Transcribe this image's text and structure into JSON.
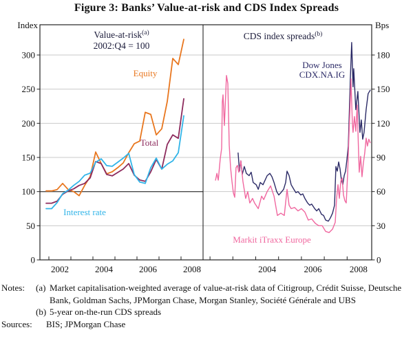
{
  "figure": {
    "title": "Figure 3: Banks’ Value-at-risk and CDS Index Spreads"
  },
  "axes": {
    "left_label": "Index",
    "right_label": "Bps"
  },
  "notes": {
    "label": "Notes:",
    "items": [
      {
        "marker": "(a)",
        "text": "Market capitalisation-weighted average of value-at-risk data of Citigroup, Crédit Suisse, Deutsche Bank, Goldman Sachs, JPMorgan Chase, Morgan Stanley, Société Générale and UBS"
      },
      {
        "marker": "(b)",
        "text": "5-year on-the-run CDS spreads"
      }
    ],
    "sources_label": "Sources:",
    "sources": "BIS; JPMorgan Chase"
  },
  "chart_data": {
    "type": "line",
    "layout": "two-panel shared frame, left value axis (Index) and right value axis (Bps), light horizontal gridlines",
    "panels": [
      {
        "title": "Value-at-risk",
        "title_sup": "(a)",
        "subtitle": "2002:Q4 = 100",
        "ylabel": "Index",
        "ylim": [
          0,
          344
        ],
        "yticks": [
          0,
          50,
          100,
          150,
          200,
          250,
          300
        ],
        "reference_line_value": 100,
        "x_tick_years": [
          2002,
          2003,
          2004,
          2005,
          2006,
          2007,
          2008
        ],
        "x_label_years": [
          2002,
          2004,
          2006,
          2008
        ],
        "series": [
          {
            "name": "Equity",
            "color": "#E8761E",
            "label_lines": [
              "Equity"
            ],
            "x_start": 2001.875,
            "x_step": 0.25,
            "values": [
              101,
              101,
              103,
              112,
              103,
              100,
              94,
              109,
              122,
              158,
              141,
              126,
              129,
              135,
              142,
              157,
              170,
              174,
              216,
              213,
              183,
              192,
              232,
              295,
              286,
              323
            ]
          },
          {
            "name": "Total",
            "color": "#8C2A5C",
            "label_lines": [
              "Total"
            ],
            "x_start": 2001.875,
            "x_step": 0.25,
            "values": [
              83,
              83,
              86,
              96,
              101,
              104,
              109,
              112,
              120,
              144,
              141,
              125,
              123,
              128,
              133,
              141,
              124,
              117,
              115,
              129,
              147,
              133,
              169,
              183,
              178,
              236
            ]
          },
          {
            "name": "Interest rate",
            "color": "#30B4E8",
            "label_lines": [
              "Interest rate"
            ],
            "x_start": 2001.875,
            "x_step": 0.25,
            "values": [
              75,
              75,
              84,
              97,
              102,
              109,
              115,
              124,
              127,
              143,
              148,
              138,
              137,
              143,
              149,
              156,
              125,
              114,
              112,
              135,
              149,
              133,
              140,
              145,
              157,
              211
            ]
          }
        ]
      },
      {
        "title": "CDS index spreads",
        "title_sup": "(b)",
        "ylabel": "Bps",
        "ylim": [
          0,
          206
        ],
        "yticks": [
          0,
          30,
          60,
          90,
          120,
          150,
          180
        ],
        "x_tick_years": [
          2002,
          2003,
          2004,
          2005,
          2006,
          2007,
          2008
        ],
        "x_label_years": [
          2004,
          2006,
          2008
        ],
        "series": [
          {
            "name": "Dow Jones CDX.NA.IG",
            "color": "#2B2A66",
            "label_lines": [
              "Dow Jones",
              "CDX.NA.IG"
            ],
            "x": [
              2003.23,
              2003.29,
              2003.35,
              2003.41,
              2003.5,
              2003.59,
              2003.71,
              2003.8,
              2003.89,
              2004.02,
              2004.11,
              2004.2,
              2004.32,
              2004.41,
              2004.5,
              2004.62,
              2004.71,
              2004.8,
              2004.92,
              2005.01,
              2005.1,
              2005.22,
              2005.31,
              2005.37,
              2005.46,
              2005.55,
              2005.67,
              2005.76,
              2005.85,
              2005.97,
              2006.06,
              2006.15,
              2006.27,
              2006.36,
              2006.45,
              2006.58,
              2006.67,
              2006.76,
              2006.88,
              2006.97,
              2007.06,
              2007.18,
              2007.27,
              2007.36,
              2007.45,
              2007.51,
              2007.57,
              2007.63,
              2007.69,
              2007.75,
              2007.81,
              2007.87,
              2007.93,
              2007.99,
              2008.05,
              2008.11,
              2008.14,
              2008.2,
              2008.26,
              2008.29,
              2008.38,
              2008.47,
              2008.56,
              2008.62,
              2008.68,
              2008.74,
              2008.83,
              2008.92,
              2009.01
            ],
            "values": [
              94,
              78,
              87,
              75,
              82,
              76,
              74,
              77,
              68,
              66,
              62,
              68,
              66,
              70,
              74,
              76,
              73,
              68,
              60,
              57,
              59,
              62,
              68,
              78,
              74,
              66,
              62,
              59,
              60,
              57,
              58,
              54,
              50,
              48,
              49,
              45,
              43,
              45,
              40,
              39,
              35,
              34,
              37,
              41,
              48,
              82,
              78,
              86,
              80,
              70,
              66,
              74,
              78,
              88,
              100,
              140,
              158,
              191,
              152,
              168,
              132,
              148,
              112,
              123,
              106,
              112,
              132,
              146,
              149
            ]
          },
          {
            "name": "Markit iTraxx Europe",
            "color": "#F0679F",
            "label_lines": [
              "Markit iTraxx Europe"
            ],
            "x": [
              2002.24,
              2002.3,
              2002.36,
              2002.45,
              2002.51,
              2002.54,
              2002.57,
              2002.63,
              2002.72,
              2002.78,
              2002.84,
              2002.9,
              2002.96,
              2003.02,
              2003.08,
              2003.14,
              2003.2,
              2003.26,
              2003.35,
              2003.44,
              2003.56,
              2003.65,
              2003.74,
              2003.86,
              2003.95,
              2004.11,
              2004.26,
              2004.35,
              2004.5,
              2004.65,
              2004.8,
              2004.95,
              2005.1,
              2005.25,
              2005.37,
              2005.46,
              2005.55,
              2005.7,
              2005.85,
              2006.0,
              2006.15,
              2006.3,
              2006.45,
              2006.61,
              2006.76,
              2006.91,
              2007.06,
              2007.21,
              2007.36,
              2007.48,
              2007.54,
              2007.6,
              2007.66,
              2007.72,
              2007.78,
              2007.84,
              2007.9,
              2007.96,
              2008.02,
              2008.08,
              2008.14,
              2008.17,
              2008.23,
              2008.26,
              2008.32,
              2008.38,
              2008.44,
              2008.5,
              2008.53,
              2008.59,
              2008.65,
              2008.71,
              2008.77,
              2008.83,
              2008.89,
              2008.95,
              2009.01
            ],
            "values": [
              70,
              76,
              70,
              89,
              98,
              139,
              145,
              118,
              162,
              155,
              101,
              81,
              69,
              59,
              55,
              81,
              83,
              77,
              87,
              69,
              54,
              60,
              50,
              54,
              50,
              45,
              56,
              53,
              60,
              65,
              56,
              39,
              41,
              39,
              62,
              48,
              45,
              46,
              43,
              45,
              42,
              35,
              36,
              32,
              30,
              30,
              25,
              24,
              27,
              33,
              54,
              66,
              54,
              69,
              72,
              57,
              52,
              50,
              75,
              110,
              140,
              159,
              120,
              112,
              126,
              113,
              136,
              95,
              77,
              91,
              73,
              85,
              94,
              107,
              100,
              106,
              103
            ]
          }
        ]
      }
    ]
  }
}
